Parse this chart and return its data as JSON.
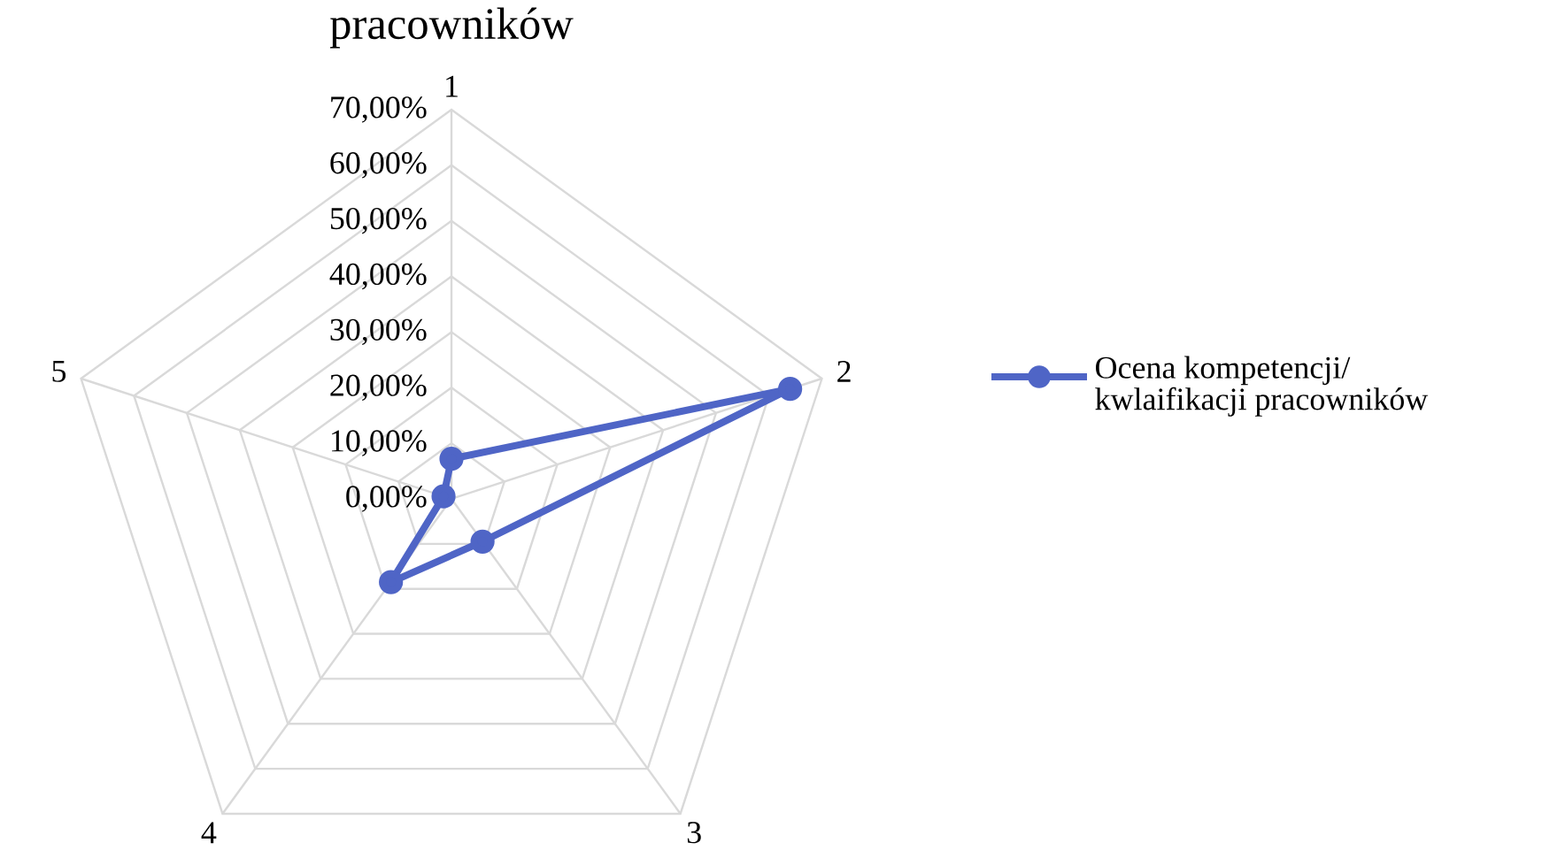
{
  "chart_data": {
    "type": "radar",
    "title": "pracowników",
    "categories": [
      "1",
      "2",
      "3",
      "4",
      "5"
    ],
    "series": [
      {
        "name": "Ocena kompetencji/ kwlaifikacji pracowników",
        "color": "#4f65c6",
        "values": [
          7.2,
          64,
          9.5,
          18.5,
          1.5
        ]
      }
    ],
    "ylim": [
      0,
      70
    ],
    "yticks": [
      {
        "value": 0,
        "label": "0,00%"
      },
      {
        "value": 10,
        "label": "10,00%"
      },
      {
        "value": 20,
        "label": "20,00%"
      },
      {
        "value": 30,
        "label": "30,00%"
      },
      {
        "value": 40,
        "label": "40,00%"
      },
      {
        "value": 50,
        "label": "50,00%"
      },
      {
        "value": 60,
        "label": "60,00%"
      },
      {
        "value": 70,
        "label": "70,00%"
      }
    ],
    "grid": true,
    "legend": "right",
    "marker": "circle"
  }
}
